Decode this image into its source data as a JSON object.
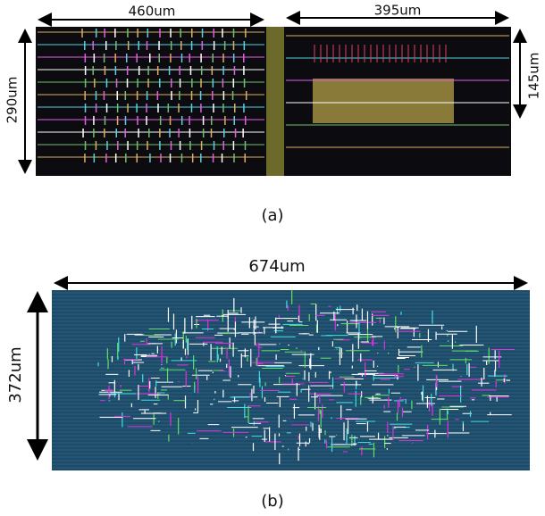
{
  "panel_a": {
    "left_width": "460um",
    "right_width": "395um",
    "left_height": "290um",
    "right_height": "145um",
    "caption": "(a)"
  },
  "panel_b": {
    "width": "674um",
    "height": "372um",
    "caption": "(b)"
  }
}
